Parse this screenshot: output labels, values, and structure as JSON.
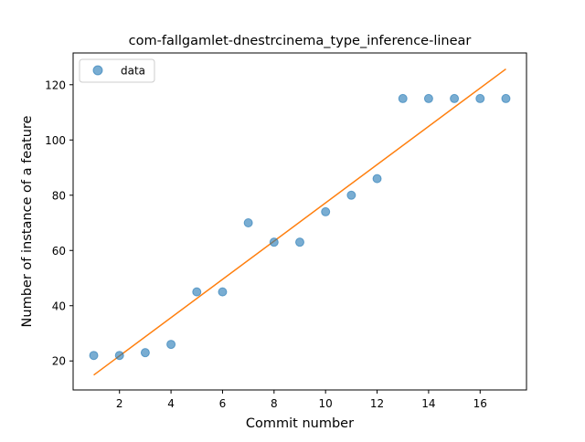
{
  "chart_data": {
    "type": "scatter",
    "title": "com-fallgamlet-dnestrcinema_type_inference-linear",
    "xlabel": "Commit number",
    "ylabel": "Number of instance of a feature",
    "xlim": [
      0.2,
      17.8
    ],
    "ylim": [
      9.5,
      131.5
    ],
    "xticks": [
      2,
      4,
      6,
      8,
      10,
      12,
      14,
      16
    ],
    "yticks": [
      20,
      40,
      60,
      80,
      100,
      120
    ],
    "grid": false,
    "legend_position": "upper-left",
    "series": [
      {
        "name": "data",
        "kind": "scatter",
        "color": "#1f77b4",
        "x": [
          1,
          2,
          3,
          4,
          5,
          6,
          7,
          8,
          9,
          10,
          11,
          12,
          13,
          14,
          15,
          16,
          17
        ],
        "y": [
          22,
          22,
          23,
          26,
          45,
          45,
          70,
          63,
          63,
          74,
          80,
          86,
          115,
          115,
          115,
          115,
          115
        ]
      },
      {
        "kind": "line",
        "color": "#ff7f0e",
        "x": [
          1,
          17
        ],
        "y": [
          14.9,
          125.7
        ]
      }
    ]
  }
}
